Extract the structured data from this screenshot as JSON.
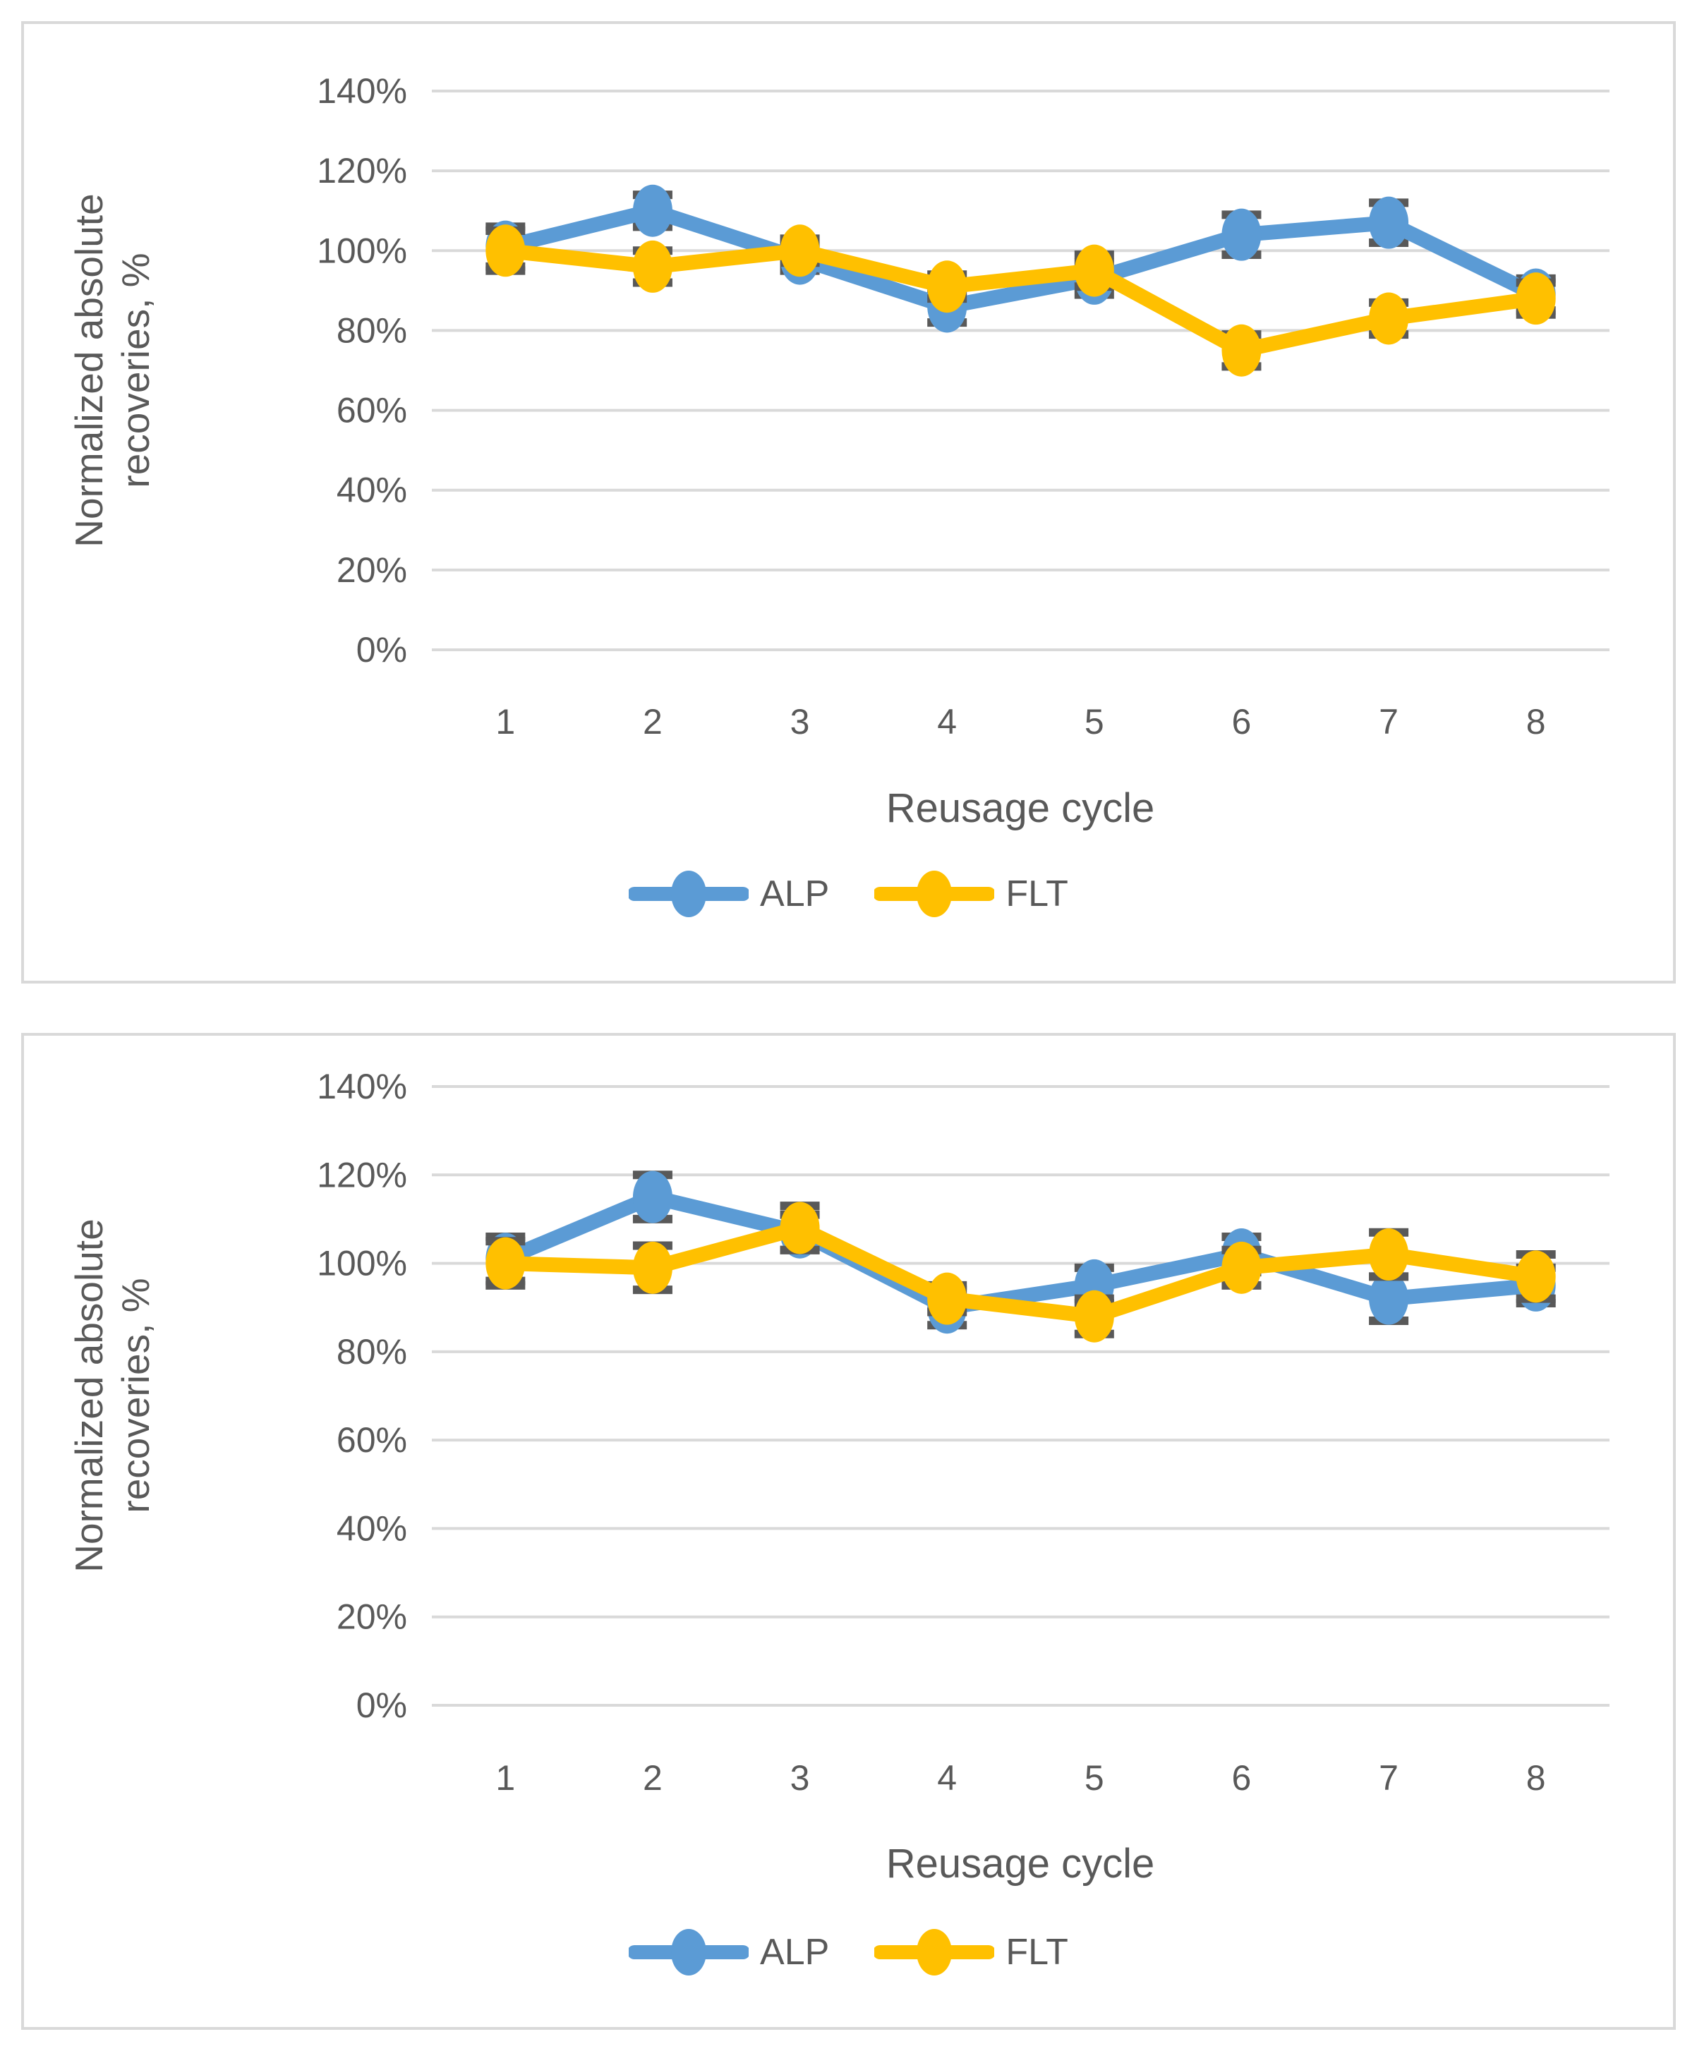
{
  "page": {
    "background": "#ffffff",
    "panel_border_color": "#d9d9d9",
    "gridline_color": "#d9d9d9",
    "text_color": "#595959",
    "error_bar_color": "#595959"
  },
  "chart_data": [
    {
      "type": "line",
      "position": "top-panel",
      "title": "",
      "xlabel": "Reusage cycle",
      "ylabel": "Normalized absolute recoveries, %",
      "ylabel_lines": [
        "Normalized absolute",
        "recoveries, %"
      ],
      "categories": [
        "1",
        "2",
        "3",
        "4",
        "5",
        "6",
        "7",
        "8"
      ],
      "y_tick_labels": [
        "0%",
        "20%",
        "40%",
        "60%",
        "80%",
        "100%",
        "120%",
        "140%"
      ],
      "ylim": [
        0,
        140
      ],
      "y_tick_step": 20,
      "grid": true,
      "legend_position": "bottom",
      "marker": "circle",
      "error_bars": true,
      "series": [
        {
          "name": "ALP",
          "color": "#5B9BD5",
          "values": [
            101,
            110,
            98,
            86,
            93,
            104,
            107,
            89
          ],
          "errors": [
            5,
            4,
            3,
            4,
            4,
            5,
            5,
            4
          ]
        },
        {
          "name": "FLT",
          "color": "#FFC000",
          "values": [
            100,
            96,
            100,
            91,
            95,
            75,
            83,
            88
          ],
          "errors": [
            5,
            4,
            3,
            3,
            4,
            4,
            4,
            4
          ]
        }
      ]
    },
    {
      "type": "line",
      "position": "bottom-panel",
      "title": "",
      "xlabel": "Reusage cycle",
      "ylabel": "Normalized absolute recoveries, %",
      "ylabel_lines": [
        "Normalized absolute",
        "recoveries, %"
      ],
      "categories": [
        "1",
        "2",
        "3",
        "4",
        "5",
        "6",
        "7",
        "8"
      ],
      "y_tick_labels": [
        "0%",
        "20%",
        "40%",
        "60%",
        "80%",
        "100%",
        "120%",
        "140%"
      ],
      "ylim": [
        0,
        140
      ],
      "y_tick_step": 20,
      "grid": true,
      "legend_position": "bottom",
      "marker": "circle",
      "error_bars": true,
      "series": [
        {
          "name": "ALP",
          "color": "#5B9BD5",
          "values": [
            101,
            115,
            107,
            90,
            95,
            102,
            92,
            95
          ],
          "errors": [
            5,
            5,
            4,
            4,
            4,
            4,
            5,
            4
          ]
        },
        {
          "name": "FLT",
          "color": "#FFC000",
          "values": [
            100,
            99,
            108,
            92,
            88,
            99,
            102,
            97
          ],
          "errors": [
            5,
            5,
            5,
            3,
            4,
            4,
            5,
            5
          ]
        }
      ]
    }
  ]
}
